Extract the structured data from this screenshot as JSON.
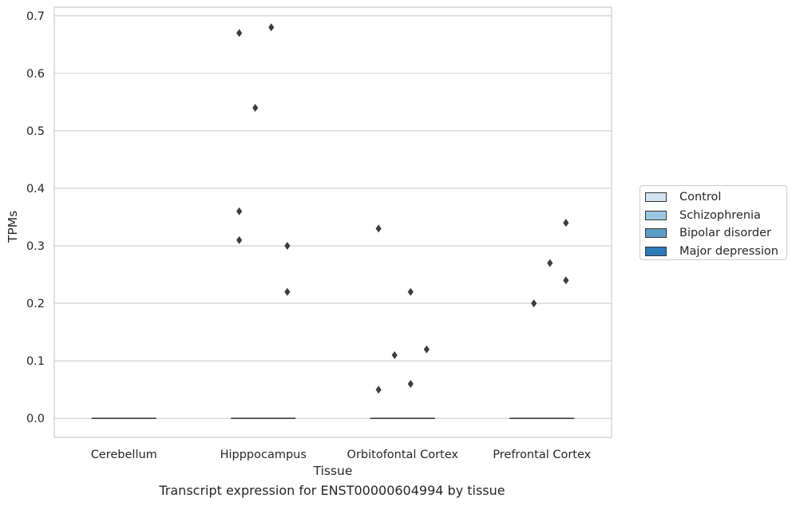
{
  "caption": "Transcript expression for ENST00000604994 by tissue",
  "chart_data": {
    "type": "box",
    "xlabel": "Tissue",
    "ylabel": "TPMs",
    "ylim": [
      -0.033,
      0.715
    ],
    "yticks": [
      0.0,
      0.1,
      0.2,
      0.3,
      0.4,
      0.5,
      0.6,
      0.7
    ],
    "ytick_labels": [
      "0.0",
      "0.1",
      "0.2",
      "0.3",
      "0.4",
      "0.5",
      "0.6",
      "0.7"
    ],
    "categories": [
      "Cerebellum",
      "Hipppocampus",
      "Orbitofontal Cortex",
      "Prefrontal Cortex"
    ],
    "grid": true,
    "legend_position": "right",
    "series": [
      {
        "name": "Control",
        "color": "#d2e3f3",
        "boxes": [
          {
            "category": "Cerebellum",
            "median": 0.0,
            "q1": 0.0,
            "q3": 0.0,
            "outliers": []
          },
          {
            "category": "Hipppocampus",
            "median": 0.0,
            "q1": 0.0,
            "q3": 0.0,
            "outliers": [
              0.67,
              0.36,
              0.31
            ]
          },
          {
            "category": "Orbitofontal Cortex",
            "median": 0.0,
            "q1": 0.0,
            "q3": 0.0,
            "outliers": [
              0.33,
              0.05
            ]
          },
          {
            "category": "Prefrontal Cortex",
            "median": 0.0,
            "q1": 0.0,
            "q3": 0.0,
            "outliers": []
          }
        ]
      },
      {
        "name": "Schizophrenia",
        "color": "#9ac8e0",
        "boxes": [
          {
            "category": "Cerebellum",
            "median": 0.0,
            "q1": 0.0,
            "q3": 0.0,
            "outliers": []
          },
          {
            "category": "Hipppocampus",
            "median": 0.0,
            "q1": 0.0,
            "q3": 0.0,
            "outliers": [
              0.54
            ]
          },
          {
            "category": "Orbitofontal Cortex",
            "median": 0.0,
            "q1": 0.0,
            "q3": 0.0,
            "outliers": [
              0.11
            ]
          },
          {
            "category": "Prefrontal Cortex",
            "median": 0.0,
            "q1": 0.0,
            "q3": 0.0,
            "outliers": [
              0.2
            ]
          }
        ]
      },
      {
        "name": "Bipolar disorder",
        "color": "#5a9ec9",
        "boxes": [
          {
            "category": "Cerebellum",
            "median": 0.0,
            "q1": 0.0,
            "q3": 0.0,
            "outliers": []
          },
          {
            "category": "Hipppocampus",
            "median": 0.0,
            "q1": 0.0,
            "q3": 0.0,
            "outliers": [
              0.68
            ]
          },
          {
            "category": "Orbitofontal Cortex",
            "median": 0.0,
            "q1": 0.0,
            "q3": 0.0,
            "outliers": [
              0.22,
              0.06
            ]
          },
          {
            "category": "Prefrontal Cortex",
            "median": 0.0,
            "q1": 0.0,
            "q3": 0.0,
            "outliers": [
              0.27
            ]
          }
        ]
      },
      {
        "name": "Major depression",
        "color": "#2d7ab8",
        "boxes": [
          {
            "category": "Cerebellum",
            "median": 0.0,
            "q1": 0.0,
            "q3": 0.0,
            "outliers": []
          },
          {
            "category": "Hipppocampus",
            "median": 0.0,
            "q1": 0.0,
            "q3": 0.0,
            "outliers": [
              0.3,
              0.22
            ]
          },
          {
            "category": "Orbitofontal Cortex",
            "median": 0.0,
            "q1": 0.0,
            "q3": 0.0,
            "outliers": [
              0.12
            ]
          },
          {
            "category": "Prefrontal Cortex",
            "median": 0.0,
            "q1": 0.0,
            "q3": 0.0,
            "outliers": [
              0.34,
              0.24
            ]
          }
        ]
      }
    ]
  }
}
